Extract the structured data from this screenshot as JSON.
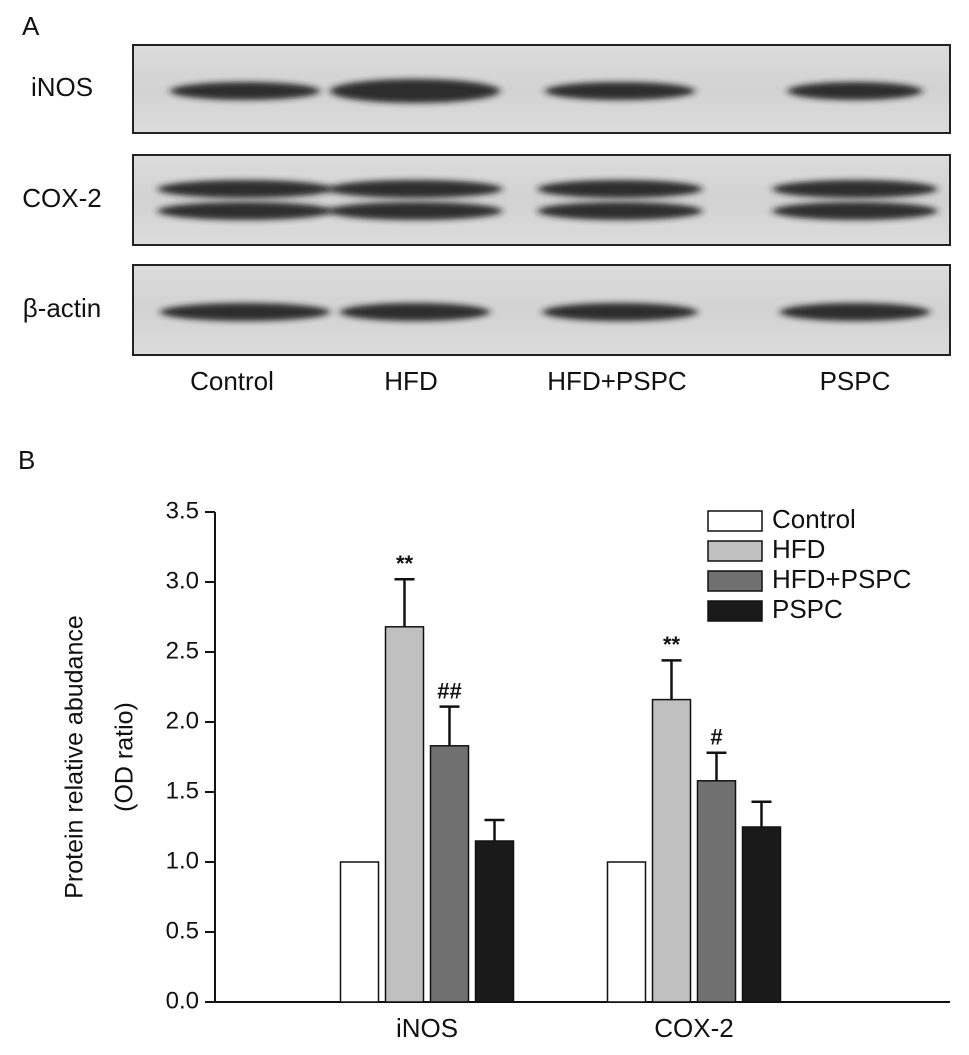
{
  "panel_a": {
    "panel_label": "A",
    "rows": [
      "iNOS",
      "COX-2",
      "β-actin"
    ],
    "lanes": [
      "Control",
      "HFD",
      "HFD+PSPC",
      "PSPC"
    ]
  },
  "chart_data": {
    "type": "bar",
    "panel_label": "B",
    "y_label": [
      "Protein relative abudance",
      "(OD ratio)"
    ],
    "categories": [
      "iNOS",
      "COX-2"
    ],
    "series": [
      {
        "name": "Control",
        "color": "#ffffff",
        "values": [
          1.0,
          1.0
        ],
        "errors": [
          null,
          null
        ],
        "annotations": [
          null,
          null
        ]
      },
      {
        "name": "HFD",
        "color": "#c0c0c0",
        "values": [
          2.68,
          2.16
        ],
        "errors": [
          0.34,
          0.28
        ],
        "annotations": [
          "**",
          "**"
        ]
      },
      {
        "name": "HFD+PSPC",
        "color": "#707070",
        "values": [
          1.83,
          1.58
        ],
        "errors": [
          0.28,
          0.2
        ],
        "annotations": [
          "##",
          "#"
        ]
      },
      {
        "name": "PSPC",
        "color": "#1a1a1a",
        "values": [
          1.15,
          1.25
        ],
        "errors": [
          0.15,
          0.18
        ],
        "annotations": [
          null,
          null
        ]
      }
    ],
    "ylim": [
      0,
      3.5
    ],
    "yticks": [
      {
        "value": 0,
        "label": "0.0"
      },
      0.5,
      {
        "value": 1,
        "label": "1.0"
      },
      1.5,
      {
        "value": 2,
        "label": "2.0"
      },
      2.5,
      {
        "value": 3,
        "label": "3.0"
      },
      3.5
    ],
    "legend": "upper right"
  }
}
